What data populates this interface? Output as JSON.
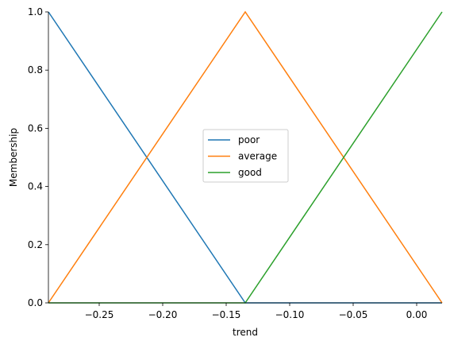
{
  "chart_data": {
    "type": "line",
    "xlabel": "trend",
    "ylabel": "Membership",
    "xlim": [
      -0.29,
      0.02
    ],
    "ylim": [
      0,
      1.0
    ],
    "xticks": [
      -0.25,
      -0.2,
      -0.15,
      -0.1,
      -0.05,
      0.0
    ],
    "xtick_labels": [
      "−0.25",
      "−0.20",
      "−0.15",
      "−0.10",
      "−0.05",
      "0.00"
    ],
    "yticks": [
      0,
      0.2,
      0.4,
      0.6,
      0.8,
      1.0
    ],
    "ytick_labels": [
      "0.0",
      "0.2",
      "0.4",
      "0.6",
      "0.8",
      "1.0"
    ],
    "grid": false,
    "legend_position": "center",
    "series": [
      {
        "name": "poor",
        "color": "#1f77b4",
        "x": [
          -0.29,
          -0.135,
          0.02
        ],
        "y": [
          1.0,
          0.0,
          0.0
        ]
      },
      {
        "name": "average",
        "color": "#ff7f0e",
        "x": [
          -0.29,
          -0.135,
          0.02
        ],
        "y": [
          0.0,
          1.0,
          0.0
        ]
      },
      {
        "name": "good",
        "color": "#2ca02c",
        "x": [
          -0.29,
          -0.135,
          0.02
        ],
        "y": [
          0.0,
          0.0,
          1.0
        ]
      }
    ]
  }
}
